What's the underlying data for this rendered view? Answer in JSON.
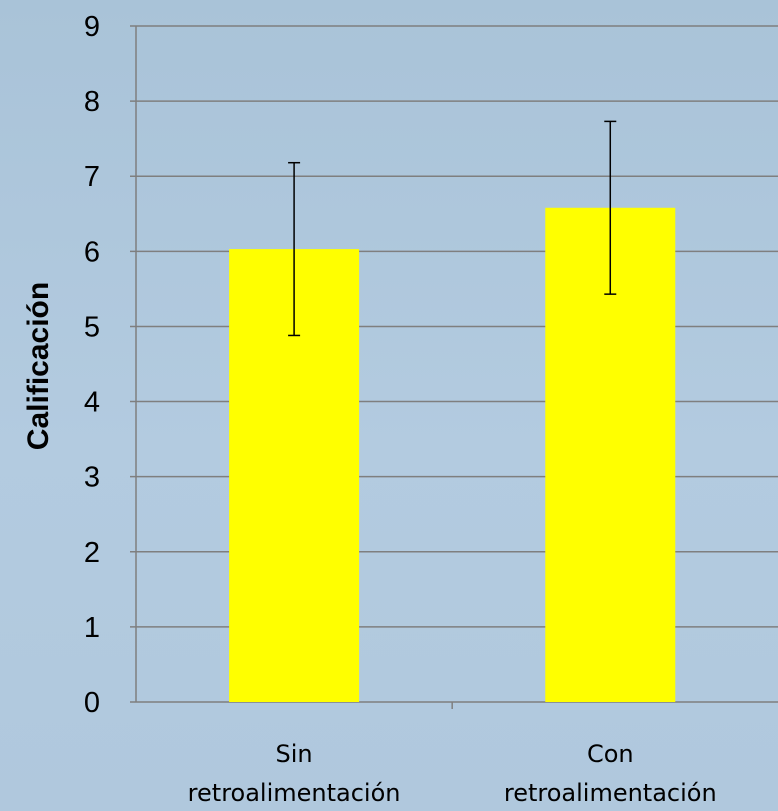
{
  "chart_data": {
    "type": "bar",
    "title": "",
    "xlabel": "",
    "ylabel": "Calificación",
    "categories": [
      [
        "Sin",
        "retroalimentación"
      ],
      [
        "Con",
        "retroalimentación"
      ]
    ],
    "series": [
      {
        "values": [
          6.03,
          6.58
        ],
        "error": [
          1.15,
          1.15
        ],
        "color": "#ffff00"
      }
    ],
    "ylim": [
      0,
      9
    ],
    "yticks": [
      0,
      1,
      2,
      3,
      4,
      5,
      6,
      7,
      8,
      9
    ],
    "grid": true,
    "legend": "none"
  }
}
